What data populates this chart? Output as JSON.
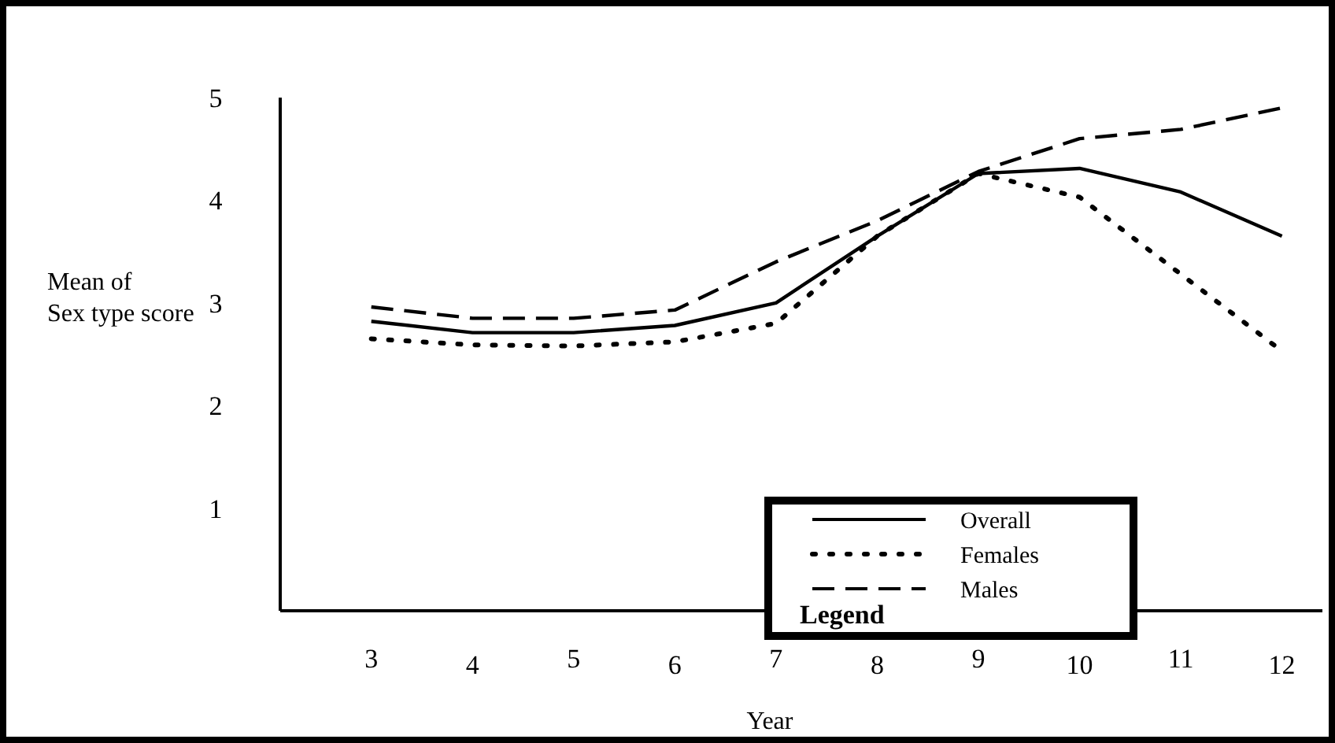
{
  "chart_data": {
    "type": "line",
    "xlabel": "Year",
    "ylabel": "Mean of Sex type score",
    "x": [
      3,
      4,
      5,
      6,
      7,
      8,
      9,
      10,
      11,
      12
    ],
    "xlim": [
      2.1,
      12.4
    ],
    "xticks": [
      3,
      4,
      5,
      6,
      7,
      8,
      9,
      10,
      11,
      12
    ],
    "ylim": [
      0,
      5
    ],
    "yticks": [
      1,
      2,
      3,
      4,
      5
    ],
    "legend": "bottom right",
    "legend_title": "Legend",
    "grid": false,
    "series": [
      {
        "name": "Overall",
        "color": "#000000",
        "line_style": "solid",
        "values": [
          2.82,
          2.71,
          2.71,
          2.78,
          3.0,
          3.65,
          4.26,
          4.31,
          4.08,
          3.65
        ]
      },
      {
        "name": "Females",
        "color": "#000000",
        "line_style": "dotted",
        "values": [
          2.65,
          2.59,
          2.58,
          2.62,
          2.8,
          3.65,
          4.26,
          4.03,
          3.28,
          2.53
        ]
      },
      {
        "name": "Males",
        "color": "#000000",
        "line_style": "dashed",
        "values": [
          2.96,
          2.85,
          2.85,
          2.93,
          3.4,
          3.8,
          4.28,
          4.6,
          4.69,
          4.9
        ]
      }
    ]
  }
}
